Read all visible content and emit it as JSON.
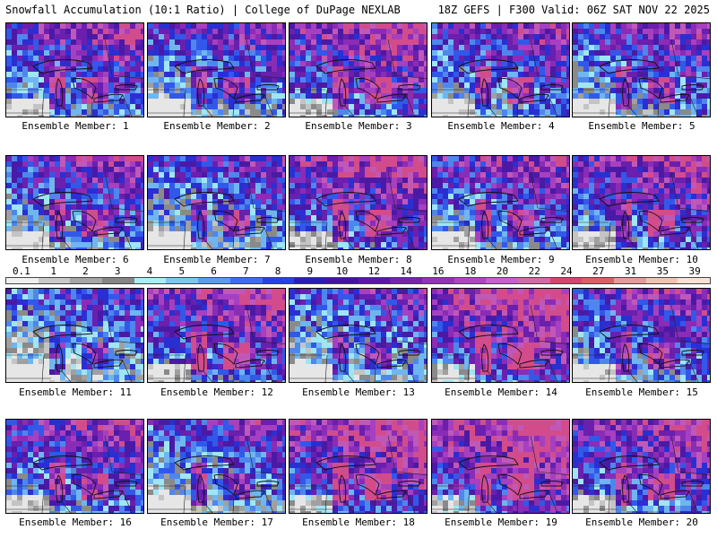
{
  "header": {
    "title": "Snowfall Accumulation (10:1 Ratio) | College of DuPage NEXLAB",
    "run_info": "18Z GEFS | F300 Valid: 06Z SAT NOV 22 2025"
  },
  "colorbar": {
    "labels": [
      "0.1",
      "1",
      "2",
      "3",
      "4",
      "5",
      "6",
      "7",
      "8",
      "9",
      "10",
      "12",
      "14",
      "16",
      "18",
      "20",
      "22",
      "24",
      "27",
      "31",
      "35",
      "39"
    ],
    "colors": [
      "#efefef",
      "#c8c8c8",
      "#a6a6a6",
      "#868686",
      "#a6f0f8",
      "#79c8f0",
      "#5a9cee",
      "#3c6ff0",
      "#2244e4",
      "#2a1fb4",
      "#45139e",
      "#5e17a4",
      "#7a22ab",
      "#9632b8",
      "#b244c6",
      "#ca5ed2",
      "#d46aa8",
      "#d0486e",
      "#d86262",
      "#e89a9a",
      "#f2c4b0",
      "#f9e2d4"
    ]
  },
  "members": [
    {
      "label": "Ensemble Member: 1"
    },
    {
      "label": "Ensemble Member: 2"
    },
    {
      "label": "Ensemble Member: 3"
    },
    {
      "label": "Ensemble Member: 4"
    },
    {
      "label": "Ensemble Member: 5"
    },
    {
      "label": "Ensemble Member: 6"
    },
    {
      "label": "Ensemble Member: 7"
    },
    {
      "label": "Ensemble Member: 8"
    },
    {
      "label": "Ensemble Member: 9"
    },
    {
      "label": "Ensemble Member: 10"
    },
    {
      "label": "Ensemble Member: 11"
    },
    {
      "label": "Ensemble Member: 12"
    },
    {
      "label": "Ensemble Member: 13"
    },
    {
      "label": "Ensemble Member: 14"
    },
    {
      "label": "Ensemble Member: 15"
    },
    {
      "label": "Ensemble Member: 16"
    },
    {
      "label": "Ensemble Member: 17"
    },
    {
      "label": "Ensemble Member: 18"
    },
    {
      "label": "Ensemble Member: 19"
    },
    {
      "label": "Ensemble Member: 20"
    }
  ]
}
